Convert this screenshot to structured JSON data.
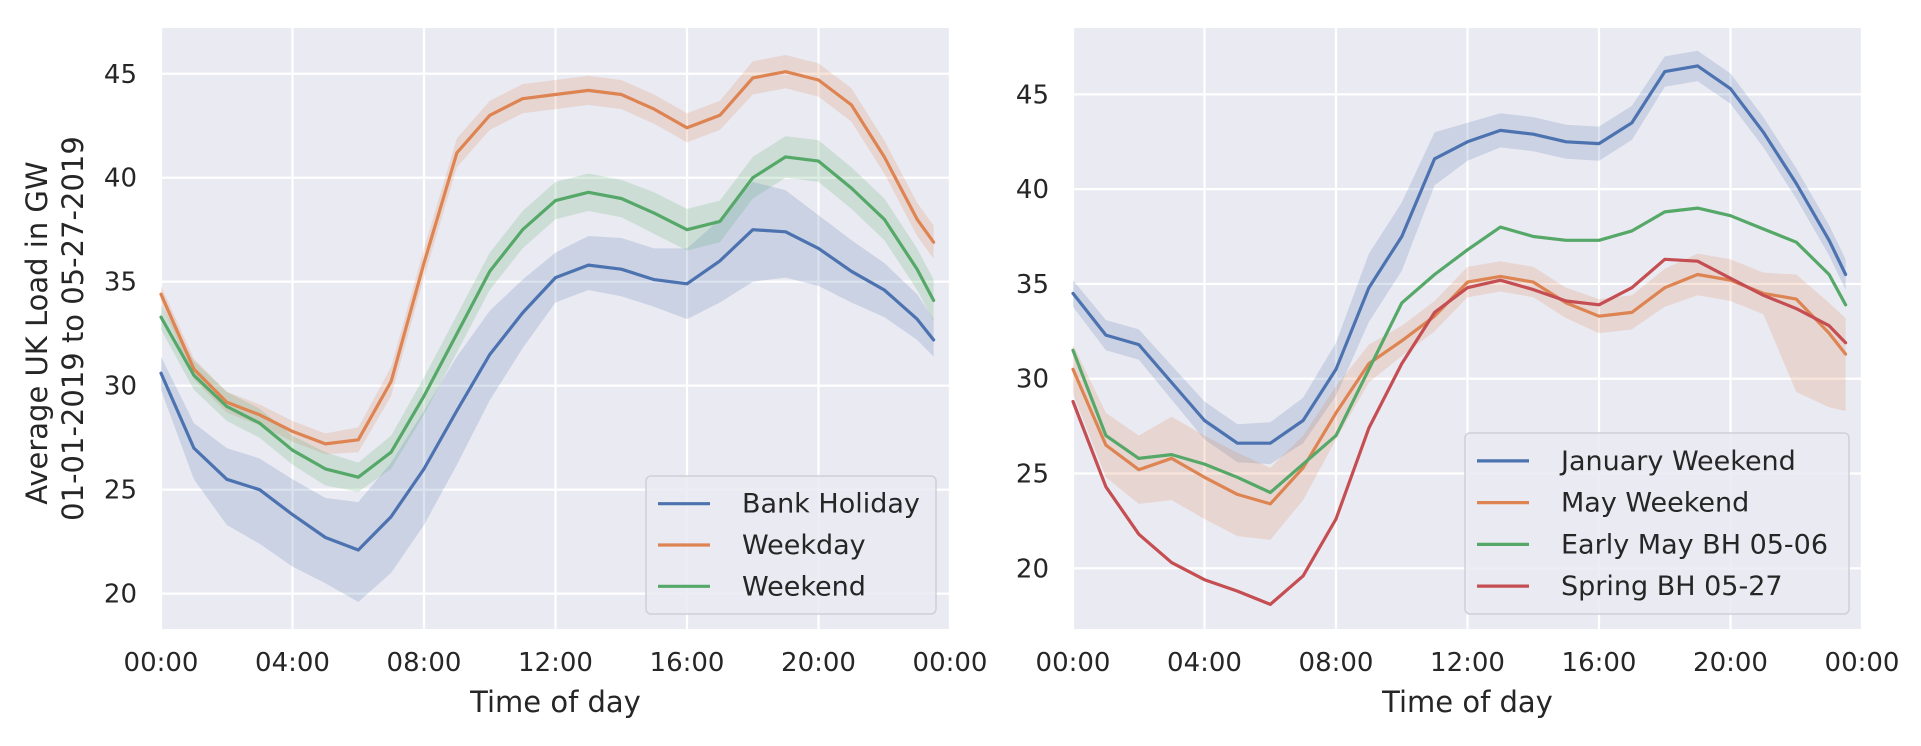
{
  "chart_data": [
    {
      "type": "line",
      "xlabel": "Time of day",
      "ylabel_lines": [
        "Average UK Load in GW",
        "01-01-2019 to 05-27-2019"
      ],
      "xlim": [
        0,
        24
      ],
      "ylim": [
        18.3,
        47.2
      ],
      "xticks": [
        0,
        4,
        8,
        12,
        16,
        20,
        24
      ],
      "xtick_labels": [
        "00:00",
        "04:00",
        "08:00",
        "12:00",
        "16:00",
        "20:00",
        "00:00"
      ],
      "yticks": [
        20,
        25,
        30,
        35,
        40,
        45
      ],
      "grid": true,
      "legend_position": "lower-right",
      "x": [
        0,
        1,
        2,
        3,
        4,
        5,
        6,
        7,
        8,
        9,
        10,
        11,
        12,
        13,
        14,
        15,
        16,
        17,
        18,
        19,
        20,
        21,
        22,
        23,
        23.5
      ],
      "series": [
        {
          "name": "Bank Holiday",
          "color": "#4c72b0",
          "values": [
            30.6,
            27.0,
            25.5,
            25.0,
            23.8,
            22.7,
            22.1,
            23.7,
            26.0,
            28.8,
            31.5,
            33.5,
            35.2,
            35.8,
            35.6,
            35.1,
            34.9,
            36.0,
            37.5,
            37.4,
            36.6,
            35.5,
            34.6,
            33.2,
            32.2
          ],
          "ci_lower": [
            29.8,
            25.5,
            23.3,
            22.4,
            21.3,
            20.5,
            19.6,
            21.0,
            23.3,
            26.2,
            29.3,
            31.8,
            34.0,
            34.6,
            34.3,
            33.8,
            33.2,
            34.0,
            35.0,
            35.2,
            34.8,
            34.0,
            33.3,
            32.2,
            31.4
          ],
          "ci_upper": [
            31.4,
            28.2,
            27.0,
            26.5,
            25.5,
            24.6,
            24.4,
            26.3,
            28.8,
            31.4,
            33.6,
            35.1,
            36.4,
            37.2,
            37.1,
            36.6,
            36.6,
            38.0,
            39.8,
            39.4,
            38.2,
            37.0,
            35.9,
            34.4,
            33.2
          ]
        },
        {
          "name": "Weekday",
          "color": "#dd8452",
          "values": [
            34.4,
            30.8,
            29.2,
            28.6,
            27.8,
            27.2,
            27.4,
            30.2,
            35.9,
            41.2,
            43.0,
            43.8,
            44.0,
            44.2,
            44.0,
            43.3,
            42.4,
            43.0,
            44.8,
            45.1,
            44.7,
            43.5,
            41.0,
            38.0,
            36.9
          ],
          "ci_lower": [
            34.0,
            30.3,
            28.7,
            28.1,
            27.3,
            26.7,
            26.8,
            29.5,
            35.2,
            40.5,
            42.3,
            43.1,
            43.3,
            43.5,
            43.3,
            42.6,
            41.7,
            42.3,
            44.0,
            44.3,
            43.9,
            42.7,
            40.2,
            37.2,
            36.1
          ],
          "ci_upper": [
            34.8,
            31.3,
            29.7,
            29.1,
            28.3,
            27.7,
            28.0,
            30.9,
            36.6,
            41.9,
            43.7,
            44.5,
            44.7,
            44.9,
            44.7,
            44.0,
            43.1,
            43.7,
            45.6,
            45.9,
            45.5,
            44.3,
            41.8,
            38.8,
            37.7
          ],
          "show_band": true
        },
        {
          "name": "Weekend",
          "color": "#55a868",
          "values": [
            33.3,
            30.5,
            29.0,
            28.2,
            26.9,
            26.0,
            25.6,
            26.8,
            29.5,
            32.5,
            35.5,
            37.5,
            38.9,
            39.3,
            39.0,
            38.3,
            37.5,
            37.9,
            40.0,
            41.0,
            40.8,
            39.5,
            38.0,
            35.6,
            34.1
          ],
          "ci_lower": [
            32.7,
            29.8,
            28.3,
            27.5,
            26.2,
            25.2,
            24.9,
            26.0,
            28.6,
            31.6,
            34.6,
            36.6,
            38.0,
            38.4,
            38.1,
            37.3,
            36.5,
            36.9,
            39.0,
            40.0,
            39.8,
            38.5,
            37.0,
            34.6,
            33.1
          ],
          "ci_upper": [
            33.9,
            31.2,
            29.7,
            28.9,
            27.6,
            26.8,
            26.3,
            27.6,
            30.4,
            33.4,
            36.4,
            38.4,
            39.8,
            40.2,
            39.9,
            39.3,
            38.5,
            38.9,
            41.0,
            42.0,
            41.8,
            40.5,
            39.0,
            36.6,
            35.1
          ]
        }
      ]
    },
    {
      "type": "line",
      "xlabel": "Time of day",
      "xlim": [
        0,
        24
      ],
      "ylim": [
        16.8,
        48.5
      ],
      "xticks": [
        0,
        4,
        8,
        12,
        16,
        20,
        24
      ],
      "xtick_labels": [
        "00:00",
        "04:00",
        "08:00",
        "12:00",
        "16:00",
        "20:00",
        "00:00"
      ],
      "yticks": [
        20,
        25,
        30,
        35,
        40,
        45
      ],
      "grid": true,
      "legend_position": "lower-right",
      "x": [
        0,
        1,
        2,
        3,
        4,
        5,
        6,
        7,
        8,
        9,
        10,
        11,
        12,
        13,
        14,
        15,
        16,
        17,
        18,
        19,
        20,
        21,
        22,
        23,
        23.5
      ],
      "series": [
        {
          "name": "January Weekend",
          "color": "#4c72b0",
          "values": [
            34.5,
            32.3,
            31.8,
            29.8,
            27.8,
            26.6,
            26.6,
            27.8,
            30.5,
            34.8,
            37.5,
            41.6,
            42.5,
            43.1,
            42.9,
            42.5,
            42.4,
            43.5,
            46.2,
            46.5,
            45.3,
            43.0,
            40.3,
            37.3,
            35.5
          ],
          "ci_lower": [
            33.8,
            31.5,
            31.0,
            28.9,
            26.8,
            25.6,
            25.5,
            26.6,
            29.1,
            33.0,
            35.7,
            40.2,
            41.5,
            42.2,
            42.0,
            41.6,
            41.5,
            42.6,
            45.4,
            45.7,
            44.5,
            42.2,
            39.5,
            36.5,
            34.7
          ],
          "ci_upper": [
            35.2,
            33.1,
            32.6,
            30.7,
            28.8,
            27.6,
            27.7,
            29.0,
            31.9,
            36.6,
            39.3,
            43.0,
            43.5,
            44.0,
            43.8,
            43.4,
            43.3,
            44.4,
            47.0,
            47.3,
            46.1,
            43.8,
            41.1,
            38.1,
            36.3
          ]
        },
        {
          "name": "May Weekend",
          "color": "#dd8452",
          "values": [
            30.5,
            26.5,
            25.2,
            25.8,
            24.8,
            23.9,
            23.4,
            25.3,
            28.2,
            30.8,
            32.0,
            33.3,
            35.1,
            35.4,
            35.1,
            34.0,
            33.3,
            33.5,
            34.8,
            35.5,
            35.2,
            34.5,
            34.2,
            32.4,
            31.3
          ],
          "ci_lower": [
            29.2,
            24.8,
            23.4,
            23.6,
            22.6,
            21.7,
            21.5,
            23.6,
            26.8,
            29.8,
            31.2,
            32.5,
            34.3,
            34.6,
            34.3,
            33.2,
            32.4,
            32.6,
            33.8,
            34.4,
            34.1,
            33.4,
            29.3,
            28.5,
            28.3
          ],
          "ci_upper": [
            31.8,
            28.2,
            27.0,
            28.0,
            27.0,
            26.1,
            25.3,
            27.0,
            29.6,
            31.8,
            32.8,
            34.1,
            35.9,
            36.2,
            35.9,
            34.8,
            34.2,
            34.4,
            35.8,
            36.6,
            36.3,
            35.6,
            35.5,
            34.0,
            33.2
          ]
        },
        {
          "name": "Early May BH 05-06",
          "color": "#55a868",
          "values": [
            31.5,
            27.0,
            25.8,
            26.0,
            25.5,
            24.8,
            24.0,
            25.5,
            27.0,
            30.5,
            34.0,
            35.5,
            36.8,
            38.0,
            37.5,
            37.3,
            37.3,
            37.8,
            38.8,
            39.0,
            38.6,
            37.9,
            37.2,
            35.5,
            33.9
          ]
        },
        {
          "name": "Spring BH 05-27",
          "color": "#c44e52",
          "values": [
            28.8,
            24.3,
            21.8,
            20.3,
            19.4,
            18.8,
            18.1,
            19.6,
            22.6,
            27.4,
            30.8,
            33.5,
            34.8,
            35.2,
            34.7,
            34.1,
            33.9,
            34.8,
            36.3,
            36.2,
            35.3,
            34.4,
            33.7,
            32.8,
            31.9
          ]
        }
      ]
    }
  ]
}
